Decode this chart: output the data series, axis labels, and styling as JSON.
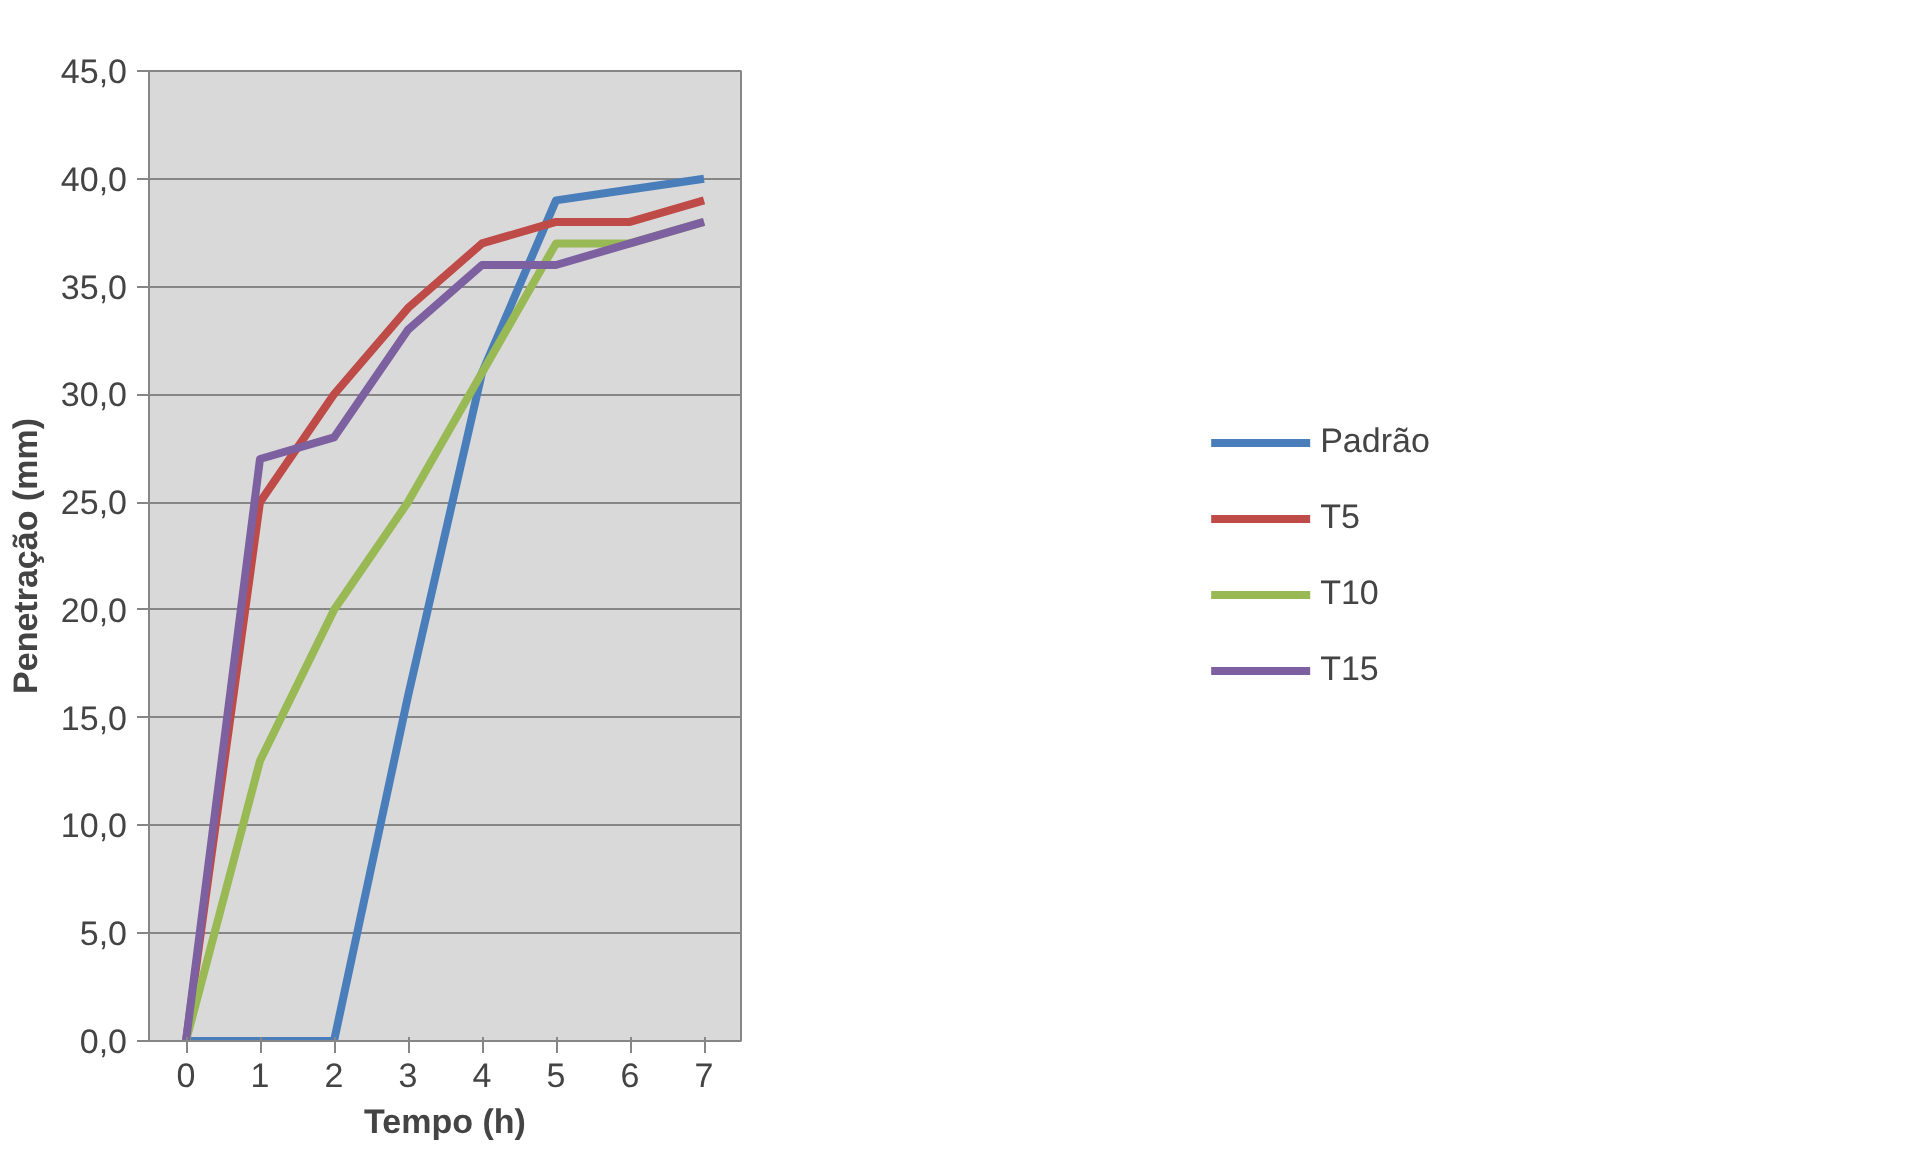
{
  "chart_data": {
    "type": "line",
    "xlabel": "Tempo (h)",
    "ylabel": "Penetração (mm)",
    "categories": [
      "0",
      "1",
      "2",
      "3",
      "4",
      "5",
      "6",
      "7"
    ],
    "ylim": [
      0,
      45
    ],
    "yticks": [
      {
        "value": 0,
        "label": "0,0"
      },
      {
        "value": 5,
        "label": "5,0"
      },
      {
        "value": 10,
        "label": "10,0"
      },
      {
        "value": 15,
        "label": "15,0"
      },
      {
        "value": 20,
        "label": "20,0"
      },
      {
        "value": 25,
        "label": "25,0"
      },
      {
        "value": 30,
        "label": "30,0"
      },
      {
        "value": 35,
        "label": "35,0"
      },
      {
        "value": 40,
        "label": "40,0"
      },
      {
        "value": 45,
        "label": "45,0"
      }
    ],
    "grid": "y",
    "legend": "right",
    "marker": "none",
    "line_style": "solid",
    "series": [
      {
        "name": "Padrão",
        "color": "#4a7ebb",
        "values": [
          0,
          0,
          0,
          16,
          31,
          39,
          39.5,
          40
        ]
      },
      {
        "name": "T5",
        "color": "#be4b48",
        "values": [
          0,
          25,
          30,
          34,
          37,
          38,
          38,
          39
        ]
      },
      {
        "name": "T10",
        "color": "#98b954",
        "values": [
          0,
          13,
          20,
          25,
          31,
          37,
          37,
          38
        ]
      },
      {
        "name": "T15",
        "color": "#7d60a0",
        "values": [
          0,
          27,
          28,
          33,
          36,
          36,
          37,
          38
        ]
      }
    ]
  }
}
